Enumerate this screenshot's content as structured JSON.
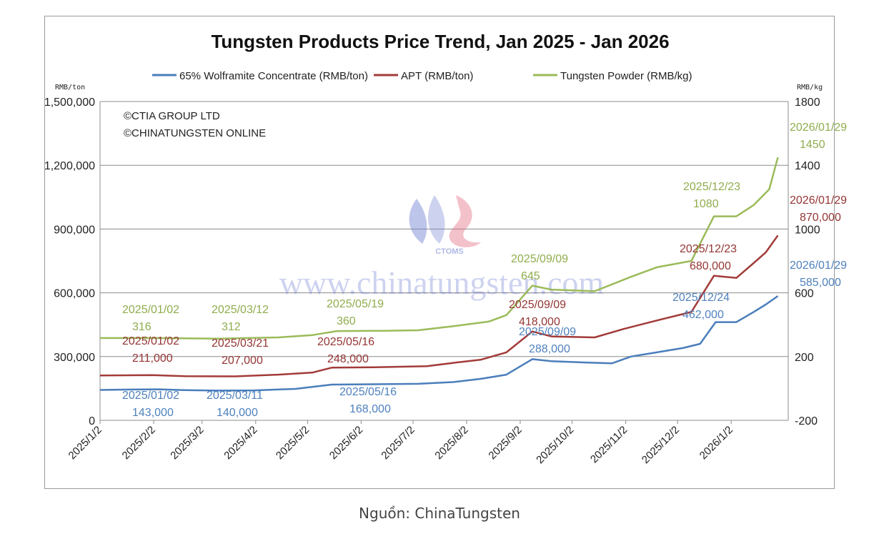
{
  "chart_data": {
    "type": "line",
    "title": "Tungsten Products Price Trend, Jan 2025 - Jan 2026",
    "y_left_unit": "RMB/ton",
    "y_right_unit": "RMB/kg",
    "y_left_ticks": [
      "1,500,000",
      "1,200,000",
      "900,000",
      "600,000",
      "300,000",
      "0"
    ],
    "y_right_ticks": [
      "1800",
      "1400",
      "1000",
      "600",
      "200",
      "-200"
    ],
    "y_left_range": [
      0,
      1500000
    ],
    "y_right_range": [
      -200,
      1800
    ],
    "x_labels": [
      "2025/1/2",
      "2025/2/2",
      "2025/3/2",
      "2025/4/2",
      "2025/5/2",
      "2025/6/2",
      "2025/7/2",
      "2025/8/2",
      "2025/9/2",
      "2025/10/2",
      "2025/11/2",
      "2025/12/2",
      "2026/1/2"
    ],
    "grid": "horizontal",
    "legend_position": "top",
    "copyright": [
      "©CTIA GROUP LTD",
      "©CHINATUNGSTEN ONLINE"
    ],
    "watermark": {
      "logo_text": "CTOMS",
      "site": "www.chinatungsten.com"
    },
    "series": [
      {
        "name": "65% Wolframite Concentrate (RMB/ton)",
        "axis": "left",
        "color": "#4a7ebb",
        "points": [
          [
            "2025/01/02",
            143000
          ],
          [
            "2025/01/20",
            145000
          ],
          [
            "2025/02/05",
            146000
          ],
          [
            "2025/02/20",
            142000
          ],
          [
            "2025/03/11",
            140000
          ],
          [
            "2025/04/01",
            141000
          ],
          [
            "2025/04/25",
            148000
          ],
          [
            "2025/05/16",
            168000
          ],
          [
            "2025/06/10",
            170000
          ],
          [
            "2025/07/05",
            172000
          ],
          [
            "2025/07/25",
            180000
          ],
          [
            "2025/08/10",
            195000
          ],
          [
            "2025/08/25",
            215000
          ],
          [
            "2025/09/09",
            288000
          ],
          [
            "2025/09/20",
            278000
          ],
          [
            "2025/10/10",
            272000
          ],
          [
            "2025/10/25",
            268000
          ],
          [
            "2025/11/05",
            300000
          ],
          [
            "2025/11/20",
            320000
          ],
          [
            "2025/12/05",
            340000
          ],
          [
            "2025/12/15",
            360000
          ],
          [
            "2025/12/24",
            462000
          ],
          [
            "2026/01/05",
            462000
          ],
          [
            "2026/01/15",
            510000
          ],
          [
            "2026/01/22",
            545000
          ],
          [
            "2026/01/29",
            585000
          ]
        ]
      },
      {
        "name": "APT (RMB/ton)",
        "axis": "left",
        "color": "#a23b39",
        "points": [
          [
            "2025/01/02",
            211000
          ],
          [
            "2025/02/01",
            213000
          ],
          [
            "2025/02/20",
            208000
          ],
          [
            "2025/03/21",
            207000
          ],
          [
            "2025/04/15",
            215000
          ],
          [
            "2025/05/05",
            225000
          ],
          [
            "2025/05/16",
            248000
          ],
          [
            "2025/06/10",
            250000
          ],
          [
            "2025/07/10",
            255000
          ],
          [
            "2025/07/25",
            270000
          ],
          [
            "2025/08/10",
            285000
          ],
          [
            "2025/08/25",
            320000
          ],
          [
            "2025/09/09",
            418000
          ],
          [
            "2025/09/20",
            395000
          ],
          [
            "2025/10/15",
            390000
          ],
          [
            "2025/11/01",
            430000
          ],
          [
            "2025/11/20",
            470000
          ],
          [
            "2025/12/10",
            510000
          ],
          [
            "2025/12/23",
            680000
          ],
          [
            "2026/01/05",
            670000
          ],
          [
            "2026/01/15",
            740000
          ],
          [
            "2026/01/22",
            790000
          ],
          [
            "2026/01/29",
            870000
          ]
        ]
      },
      {
        "name": "Tungsten Powder (RMB/kg)",
        "axis": "right",
        "color": "#9bbb59",
        "points": [
          [
            "2025/01/02",
            316
          ],
          [
            "2025/02/01",
            316
          ],
          [
            "2025/03/12",
            312
          ],
          [
            "2025/04/15",
            320
          ],
          [
            "2025/05/05",
            335
          ],
          [
            "2025/05/19",
            360
          ],
          [
            "2025/06/15",
            362
          ],
          [
            "2025/07/05",
            365
          ],
          [
            "2025/07/25",
            390
          ],
          [
            "2025/08/15",
            420
          ],
          [
            "2025/08/25",
            460
          ],
          [
            "2025/09/09",
            645
          ],
          [
            "2025/09/20",
            620
          ],
          [
            "2025/10/15",
            610
          ],
          [
            "2025/11/05",
            700
          ],
          [
            "2025/11/20",
            760
          ],
          [
            "2025/12/10",
            800
          ],
          [
            "2025/12/23",
            1080
          ],
          [
            "2026/01/05",
            1080
          ],
          [
            "2026/01/15",
            1150
          ],
          [
            "2026/01/24",
            1250
          ],
          [
            "2026/01/29",
            1450
          ]
        ]
      }
    ],
    "annotations": [
      {
        "series": 2,
        "date": "2025/01/02",
        "value": "316"
      },
      {
        "series": 2,
        "date": "2025/03/12",
        "value": "312"
      },
      {
        "series": 2,
        "date": "2025/05/19",
        "value": "360"
      },
      {
        "series": 2,
        "date": "2025/09/09",
        "value": "645"
      },
      {
        "series": 2,
        "date": "2025/12/23",
        "value": "1080"
      },
      {
        "series": 2,
        "date": "2026/01/29",
        "value": "1450"
      },
      {
        "series": 1,
        "date": "2025/01/02",
        "value": "211,000"
      },
      {
        "series": 1,
        "date": "2025/03/21",
        "value": "207,000"
      },
      {
        "series": 1,
        "date": "2025/05/16",
        "value": "248,000"
      },
      {
        "series": 1,
        "date": "2025/09/09",
        "value": "418,000"
      },
      {
        "series": 1,
        "date": "2025/12/23",
        "value": "680,000"
      },
      {
        "series": 1,
        "date": "2026/01/29",
        "value": "870,000"
      },
      {
        "series": 0,
        "date": "2025/01/02",
        "value": "143,000"
      },
      {
        "series": 0,
        "date": "2025/03/11",
        "value": "140,000"
      },
      {
        "series": 0,
        "date": "2025/05/16",
        "value": "168,000"
      },
      {
        "series": 0,
        "date": "2025/09/09",
        "value": "288,000"
      },
      {
        "series": 0,
        "date": "2025/12/24",
        "value": "462,000"
      },
      {
        "series": 0,
        "date": "2026/01/29",
        "value": "585,000"
      }
    ]
  },
  "source_caption": "Nguồn: ChinaTungsten"
}
